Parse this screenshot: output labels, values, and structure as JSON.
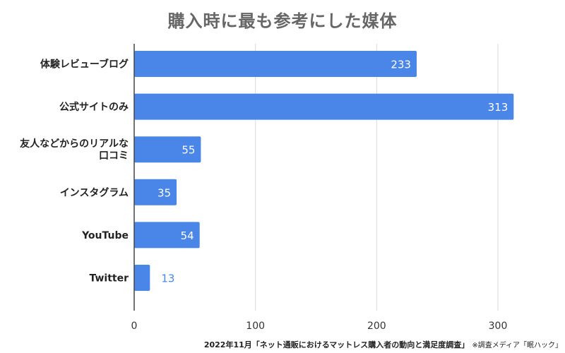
{
  "colors": {
    "bar": "#4a86e8",
    "grid": "#d9d9d9",
    "axis": "#444444",
    "label_inside": "#ffffff",
    "label_outside": "#4a86e8"
  },
  "chart_data": {
    "type": "bar",
    "orientation": "horizontal",
    "title": "購入時に最も参考にした媒体",
    "categories": [
      [
        "体験レビューブログ"
      ],
      [
        "公式サイトのみ"
      ],
      [
        "友人などからのリアルな",
        "口コミ"
      ],
      [
        "インスタグラム"
      ],
      [
        "YouTube"
      ],
      [
        "Twitter"
      ]
    ],
    "values": [
      233,
      313,
      55,
      35,
      54,
      13
    ],
    "xlim": [
      0,
      350
    ],
    "xticks": [
      0,
      100,
      200,
      300
    ],
    "xlabel": "",
    "ylabel": "",
    "grid": true,
    "data_labels": true,
    "legend": "none"
  },
  "footnote": {
    "source": "2022年11月「ネット通販におけるマットレス購入者の動向と満足度調査」",
    "note": "※調査メディア「眠ハック」"
  }
}
